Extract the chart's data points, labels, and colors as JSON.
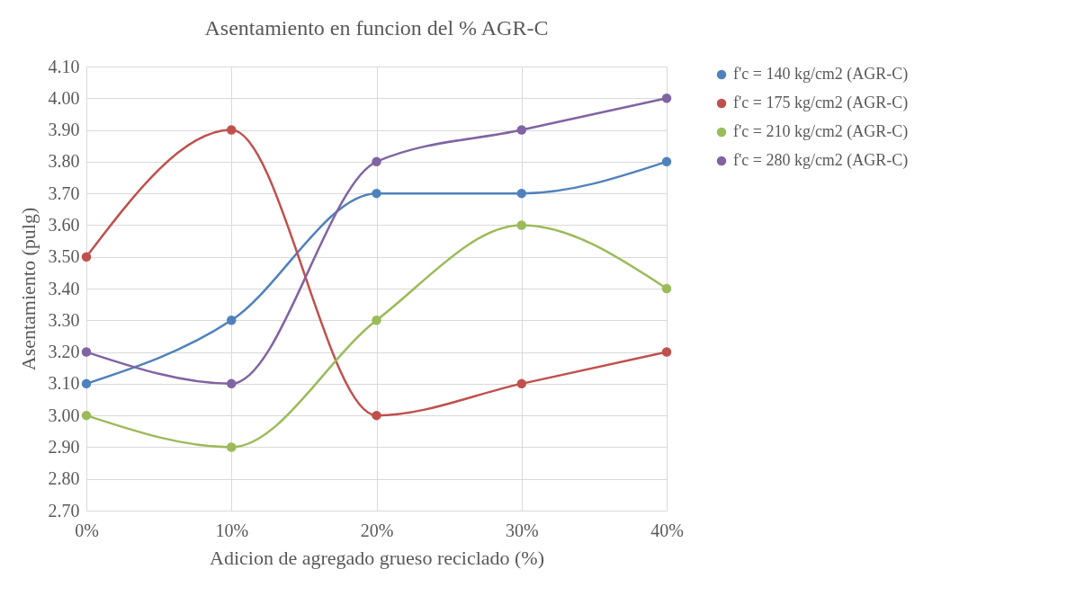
{
  "chart_data": {
    "type": "line",
    "title": "Asentamiento en funcion del % AGR-C",
    "xlabel": "Adicion de agregado grueso reciclado (%)",
    "ylabel": "Asentamiento (pulg)",
    "categories": [
      "0%",
      "10%",
      "20%",
      "30%",
      "40%"
    ],
    "series": [
      {
        "name": "f'c = 140 kg/cm2 (AGR-C)",
        "color": "#4f81bd",
        "values": [
          3.1,
          3.3,
          3.7,
          3.7,
          3.8
        ]
      },
      {
        "name": "f'c = 175 kg/cm2 (AGR-C)",
        "color": "#c0504d",
        "values": [
          3.5,
          3.9,
          3.0,
          3.1,
          3.2
        ]
      },
      {
        "name": "f'c = 210 kg/cm2 (AGR-C)",
        "color": "#9bbb59",
        "values": [
          3.0,
          2.9,
          3.3,
          3.6,
          3.4
        ]
      },
      {
        "name": "f'c = 280 kg/cm2 (AGR-C)",
        "color": "#8064a2",
        "values": [
          3.2,
          3.1,
          3.8,
          3.9,
          4.0
        ]
      }
    ],
    "ylim": [
      2.7,
      4.1
    ],
    "yticks": [
      {
        "value": 2.7,
        "label": "2.70"
      },
      {
        "value": 2.8,
        "label": "2.80"
      },
      {
        "value": 2.9,
        "label": "2.90"
      },
      {
        "value": 3.0,
        "label": "3.00"
      },
      {
        "value": 3.1,
        "label": "3.10"
      },
      {
        "value": 3.2,
        "label": "3.20"
      },
      {
        "value": 3.3,
        "label": "3.30"
      },
      {
        "value": 3.4,
        "label": "3.40"
      },
      {
        "value": 3.5,
        "label": "3.50"
      },
      {
        "value": 3.6,
        "label": "3.60"
      },
      {
        "value": 3.7,
        "label": "3.70"
      },
      {
        "value": 3.8,
        "label": "3.80"
      },
      {
        "value": 3.9,
        "label": "3.90"
      },
      {
        "value": 4.0,
        "label": "4.00"
      },
      {
        "value": 4.1,
        "label": "4.10"
      }
    ],
    "grid": true,
    "legend": "right",
    "marker": "circle",
    "line_style": "solid"
  }
}
